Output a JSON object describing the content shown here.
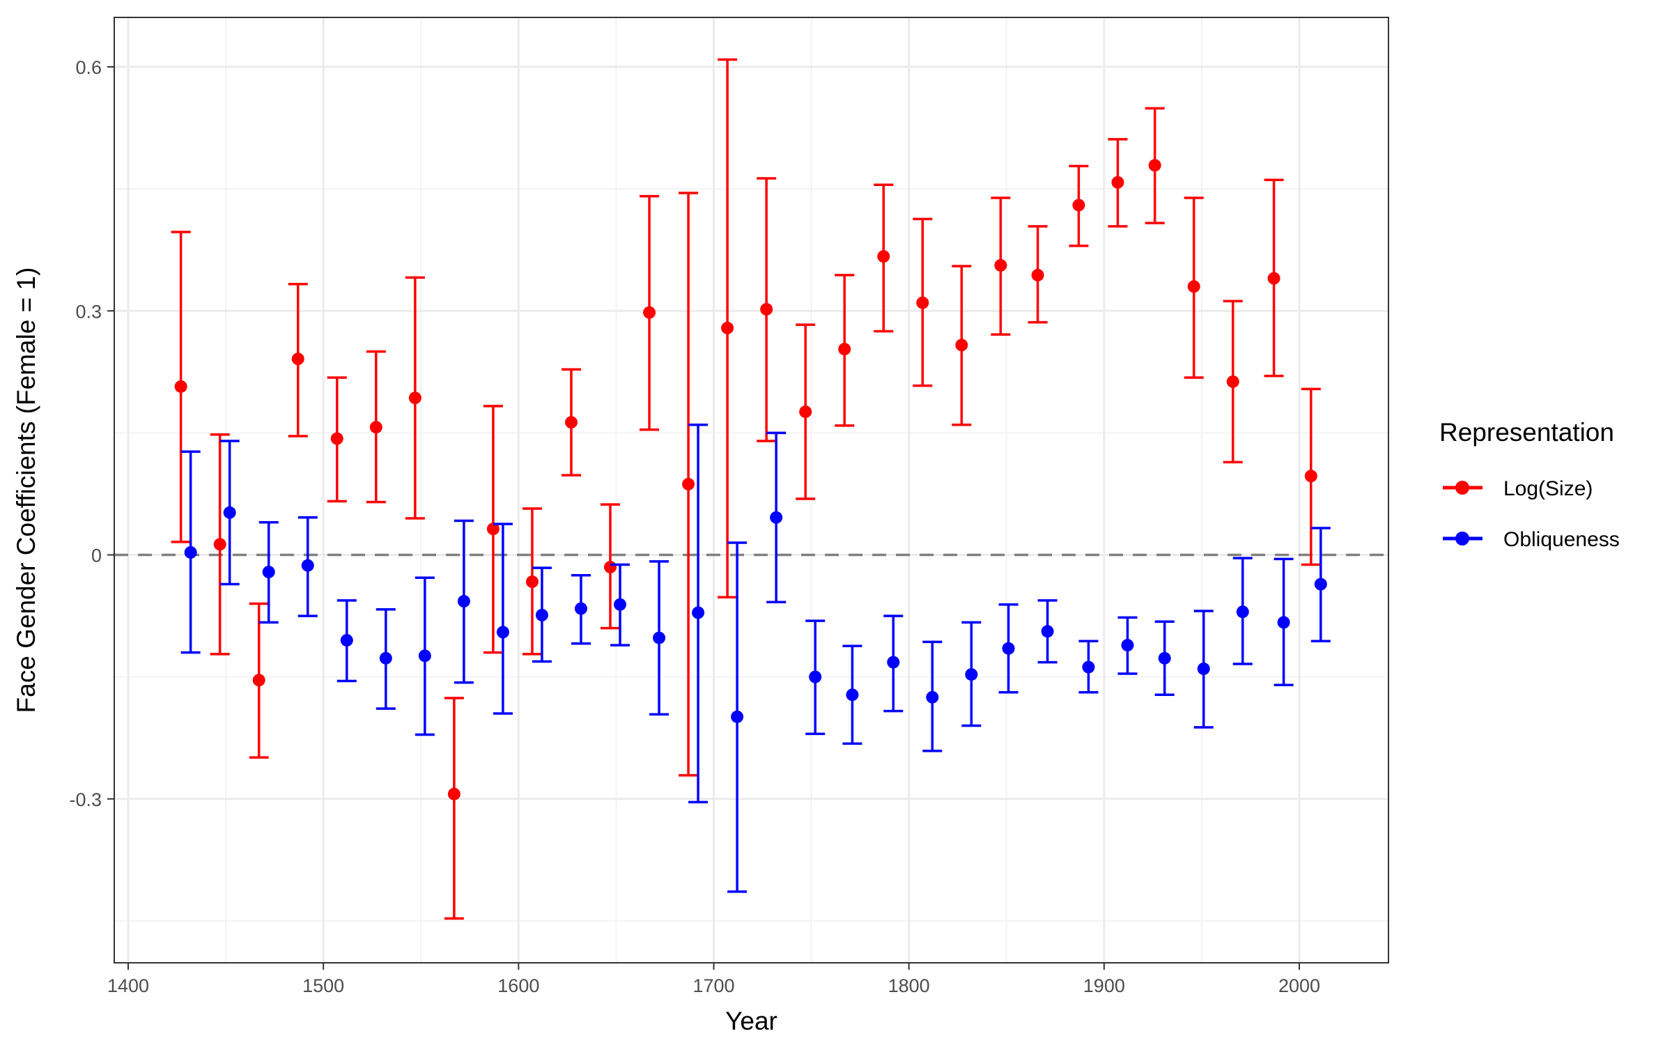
{
  "chart_data": {
    "type": "scatter",
    "subtype": "point-range with error bars",
    "title": "",
    "xlabel": "Year",
    "ylabel": "Face Gender Coefficients (Female = 1)",
    "xlim": [
      1393,
      2045
    ],
    "ylim": [
      -0.5,
      0.64
    ],
    "xticks": [
      1400,
      1500,
      1600,
      1700,
      1800,
      1900,
      2000
    ],
    "yticks": [
      -0.3,
      0,
      0.3,
      0.6
    ],
    "ytick_labels": [
      "-0.3",
      "0",
      "0.3",
      "0.6"
    ],
    "xtick_labels": [
      "1400",
      "1500",
      "1600",
      "1700",
      "1800",
      "1900",
      "2000"
    ],
    "grid": true,
    "reference_line": {
      "y": 0,
      "style": "dashed",
      "color": "#808080"
    },
    "legend": {
      "title": "Representation",
      "position": "right",
      "entries": [
        "Log(Size)",
        "Obliqueness"
      ]
    },
    "series": [
      {
        "name": "Log(Size)",
        "color": "#ff0000",
        "x": [
          1427,
          1447,
          1467,
          1487,
          1507,
          1527,
          1547,
          1567,
          1587,
          1607,
          1627,
          1647,
          1667,
          1687,
          1707,
          1727,
          1747,
          1767,
          1787,
          1807,
          1827,
          1847,
          1866,
          1887,
          1907,
          1926,
          1946,
          1966,
          1987,
          2006
        ],
        "values": [
          0.207,
          0.013,
          -0.154,
          0.241,
          0.143,
          0.157,
          0.193,
          -0.294,
          0.032,
          -0.033,
          0.163,
          -0.015,
          0.298,
          0.087,
          0.279,
          0.302,
          0.176,
          0.253,
          0.367,
          0.31,
          0.258,
          0.356,
          0.344,
          0.43,
          0.458,
          0.479,
          0.33,
          0.213,
          0.34,
          0.097
        ],
        "upper": [
          0.397,
          0.148,
          -0.06,
          0.333,
          0.218,
          0.25,
          0.341,
          -0.176,
          0.183,
          0.057,
          0.228,
          0.062,
          0.441,
          0.445,
          0.609,
          0.463,
          0.283,
          0.344,
          0.455,
          0.413,
          0.355,
          0.439,
          0.404,
          0.478,
          0.511,
          0.549,
          0.439,
          0.312,
          0.461,
          0.204
        ],
        "lower": [
          0.016,
          -0.122,
          -0.249,
          0.146,
          0.066,
          0.065,
          0.045,
          -0.447,
          -0.12,
          -0.122,
          0.098,
          -0.09,
          0.154,
          -0.271,
          -0.052,
          0.14,
          0.069,
          0.159,
          0.275,
          0.208,
          0.16,
          0.271,
          0.286,
          0.38,
          0.404,
          0.408,
          0.218,
          0.114,
          0.22,
          -0.012
        ]
      },
      {
        "name": "Obliqueness",
        "color": "#0000ff",
        "x": [
          1432,
          1452,
          1472,
          1492,
          1512,
          1532,
          1552,
          1572,
          1592,
          1612,
          1632,
          1652,
          1672,
          1692,
          1712,
          1732,
          1752,
          1771,
          1792,
          1812,
          1832,
          1851,
          1871,
          1892,
          1912,
          1931,
          1951,
          1971,
          1992,
          2011
        ],
        "values": [
          0.003,
          0.052,
          -0.021,
          -0.013,
          -0.105,
          -0.127,
          -0.124,
          -0.057,
          -0.095,
          -0.074,
          -0.066,
          -0.061,
          -0.102,
          -0.071,
          -0.199,
          0.046,
          -0.15,
          -0.172,
          -0.132,
          -0.175,
          -0.147,
          -0.115,
          -0.094,
          -0.138,
          -0.111,
          -0.127,
          -0.14,
          -0.07,
          -0.083,
          -0.036
        ],
        "upper": [
          0.127,
          0.14,
          0.04,
          0.046,
          -0.056,
          -0.067,
          -0.028,
          0.042,
          0.038,
          -0.016,
          -0.025,
          -0.012,
          -0.008,
          0.16,
          0.015,
          0.15,
          -0.081,
          -0.112,
          -0.075,
          -0.107,
          -0.083,
          -0.061,
          -0.056,
          -0.106,
          -0.077,
          -0.082,
          -0.069,
          -0.004,
          -0.005,
          0.033
        ],
        "lower": [
          -0.12,
          -0.036,
          -0.083,
          -0.075,
          -0.155,
          -0.189,
          -0.221,
          -0.157,
          -0.195,
          -0.131,
          -0.109,
          -0.111,
          -0.196,
          -0.304,
          -0.414,
          -0.058,
          -0.22,
          -0.232,
          -0.192,
          -0.241,
          -0.21,
          -0.169,
          -0.132,
          -0.169,
          -0.146,
          -0.172,
          -0.212,
          -0.134,
          -0.16,
          -0.106
        ]
      }
    ]
  },
  "colors": {
    "panel_border": "#333333",
    "grid_major": "#ebebeb",
    "grid_minor": "#f3f3f3",
    "tick_text": "#4d4d4d"
  }
}
